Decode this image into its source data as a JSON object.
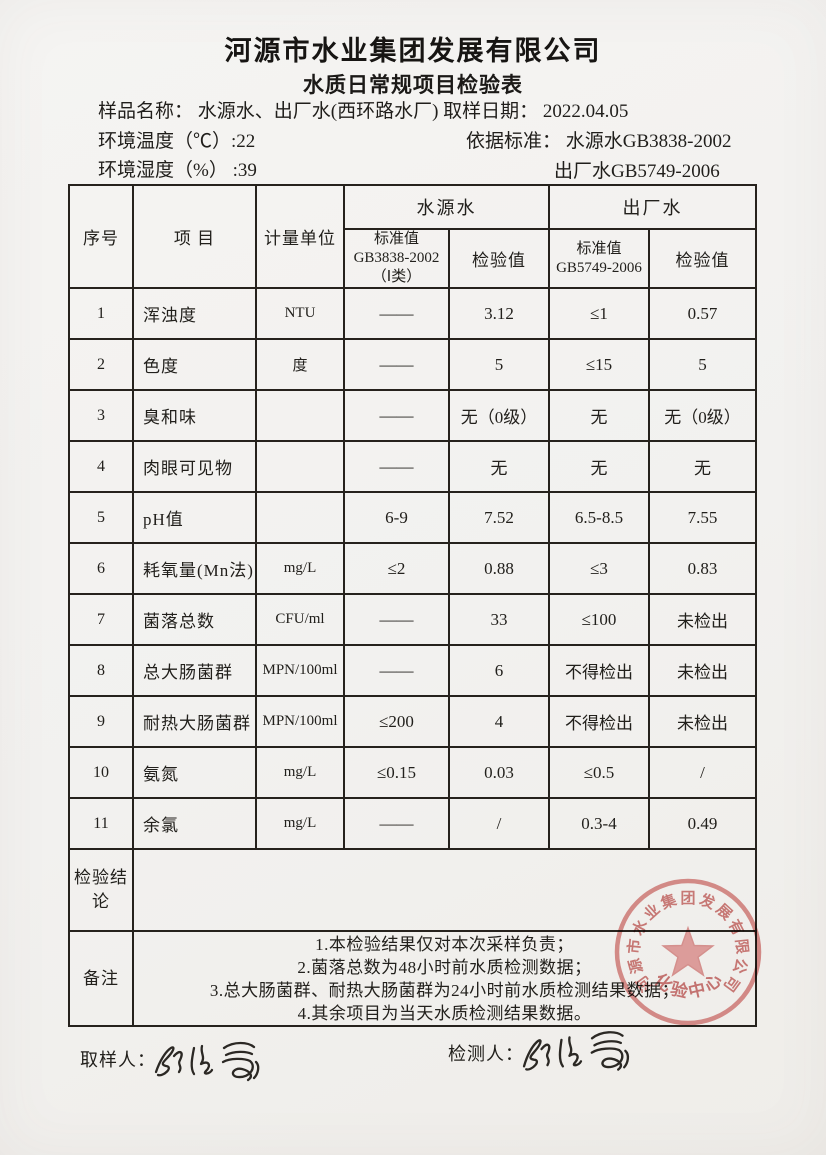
{
  "header": {
    "company": "河源市水业集团发展有限公司",
    "doc_title": "水质日常规项目检验表"
  },
  "info": {
    "sample_line": "样品名称： 水源水、出厂水(西环路水厂) 取样日期： 2022.04.05",
    "temp_line": "环境温度（℃）:22",
    "humidity_line": "环境湿度（%） :39",
    "standard_label": "依据标准： 水源水GB3838-2002",
    "standard_outlet": "出厂水GB5749-2006"
  },
  "table": {
    "col_no": "序号",
    "col_item": "项  目",
    "col_unit": "计量单位",
    "group_source": "水源水",
    "group_outlet": "出厂水",
    "src_std_l1": "标准值",
    "src_std_l2": "GB3838-2002",
    "src_std_l3": "（Ⅰ类）",
    "col_test_value_src": "检验值",
    "out_std_l1": "标准值",
    "out_std_l2": "GB5749-2006",
    "col_test_value_out": "检验值",
    "rows": [
      {
        "no": "1",
        "item": "浑浊度",
        "unit": "NTU",
        "src_std": "——",
        "src_val": "3.12",
        "out_std": "≤1",
        "out_val": "0.57"
      },
      {
        "no": "2",
        "item": "色度",
        "unit": "度",
        "src_std": "——",
        "src_val": "5",
        "out_std": "≤15",
        "out_val": "5"
      },
      {
        "no": "3",
        "item": "臭和味",
        "unit": "",
        "src_std": "——",
        "src_val": "无（0级）",
        "out_std": "无",
        "out_val": "无（0级）"
      },
      {
        "no": "4",
        "item": "肉眼可见物",
        "unit": "",
        "src_std": "——",
        "src_val": "无",
        "out_std": "无",
        "out_val": "无"
      },
      {
        "no": "5",
        "item": "pH值",
        "unit": "",
        "src_std": "6-9",
        "src_val": "7.52",
        "out_std": "6.5-8.5",
        "out_val": "7.55"
      },
      {
        "no": "6",
        "item": "耗氧量(Mn法)",
        "unit": "mg/L",
        "src_std": "≤2",
        "src_val": "0.88",
        "out_std": "≤3",
        "out_val": "0.83"
      },
      {
        "no": "7",
        "item": "菌落总数",
        "unit": "CFU/ml",
        "src_std": "——",
        "src_val": "33",
        "out_std": "≤100",
        "out_val": "未检出"
      },
      {
        "no": "8",
        "item": "总大肠菌群",
        "unit": "MPN/100ml",
        "src_std": "——",
        "src_val": "6",
        "out_std": "不得检出",
        "out_val": "未检出"
      },
      {
        "no": "9",
        "item": "耐热大肠菌群",
        "unit": "MPN/100ml",
        "src_std": "≤200",
        "src_val": "4",
        "out_std": "不得检出",
        "out_val": "未检出"
      },
      {
        "no": "10",
        "item": "氨氮",
        "unit": "mg/L",
        "src_std": "≤0.15",
        "src_val": "0.03",
        "out_std": "≤0.5",
        "out_val": "/"
      },
      {
        "no": "11",
        "item": "余氯",
        "unit": "mg/L",
        "src_std": "——",
        "src_val": "/",
        "out_std": "0.3-4",
        "out_val": "0.49"
      }
    ],
    "conclusion_label": "检验结论",
    "conclusion_value": "",
    "remarks_label": "备注",
    "remarks_lines": [
      "1.本检验结果仅对本次采样负责；",
      "2.菌落总数为48小时前水质检测数据；",
      "3.总大肠菌群、耐热大肠菌群为24小时前水质检测结果数据；",
      "4.其余项目为当天水质检测结果数据。"
    ]
  },
  "footer": {
    "sampler_label": "取样人：",
    "tester_label": "检测人：",
    "sampler_signature": "张丽霞",
    "tester_signature": "张丽霞"
  },
  "stamp": {
    "arc_text": "河源市水业集团发展有限公司",
    "center_label": "化验中心",
    "color": "#d07573"
  }
}
